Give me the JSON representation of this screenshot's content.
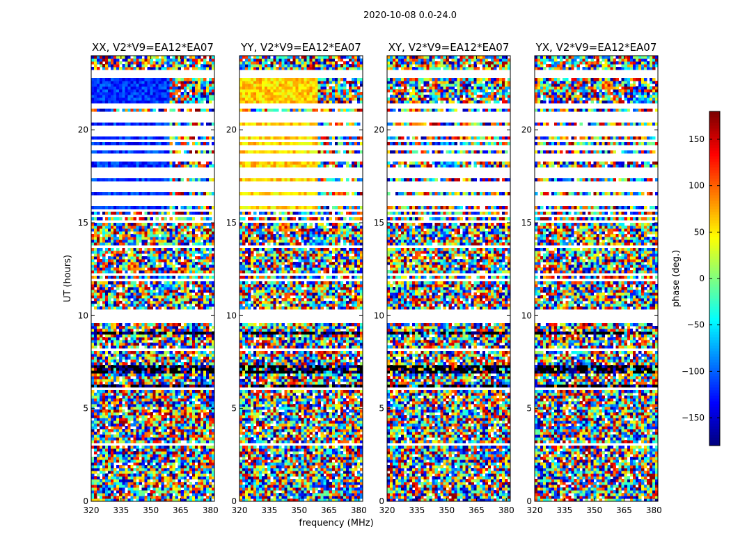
{
  "figure": {
    "suptitle": "2020-10-08 0.0-24.0",
    "xlabel": "frequency (MHz)",
    "ylabel": "UT (hours)",
    "colorbar_label": "phase (deg.)"
  },
  "chart_data": {
    "type": "heatmap",
    "panels": [
      {
        "title": "XX, V2*V9=EA12*EA07",
        "polarization": "XX"
      },
      {
        "title": "YY, V2*V9=EA12*EA07",
        "polarization": "YY"
      },
      {
        "title": "XY, V2*V9=EA12*EA07",
        "polarization": "XY"
      },
      {
        "title": "YX, V2*V9=EA12*EA07",
        "polarization": "YX"
      }
    ],
    "x": {
      "label": "frequency (MHz)",
      "range": [
        320,
        382
      ],
      "ticks": [
        320,
        335,
        350,
        365,
        380
      ]
    },
    "y": {
      "label": "UT (hours)",
      "range": [
        0,
        24
      ],
      "ticks": [
        0,
        5,
        10,
        15,
        20
      ]
    },
    "colorbar": {
      "label": "phase (deg.)",
      "range": [
        -180,
        180
      ],
      "ticks": [
        -150,
        -100,
        -50,
        0,
        50,
        100,
        150
      ],
      "tick_labels": [
        "−150",
        "−100",
        "−50",
        "0",
        "50",
        "100",
        "150"
      ],
      "colormap": "jet"
    },
    "blank_bands_hours": [
      [
        21.1,
        21.45
      ],
      [
        16.0,
        16.3
      ],
      [
        15.35,
        15.5
      ],
      [
        9.55,
        10.3
      ],
      [
        18.35,
        18.8
      ],
      [
        17.0,
        17.2
      ],
      [
        19.7,
        20.1
      ],
      [
        20.65,
        20.85
      ]
    ]
  },
  "colors": {
    "background": "#ffffff",
    "axes_edge": "#000000",
    "blank": "#ffffff"
  }
}
